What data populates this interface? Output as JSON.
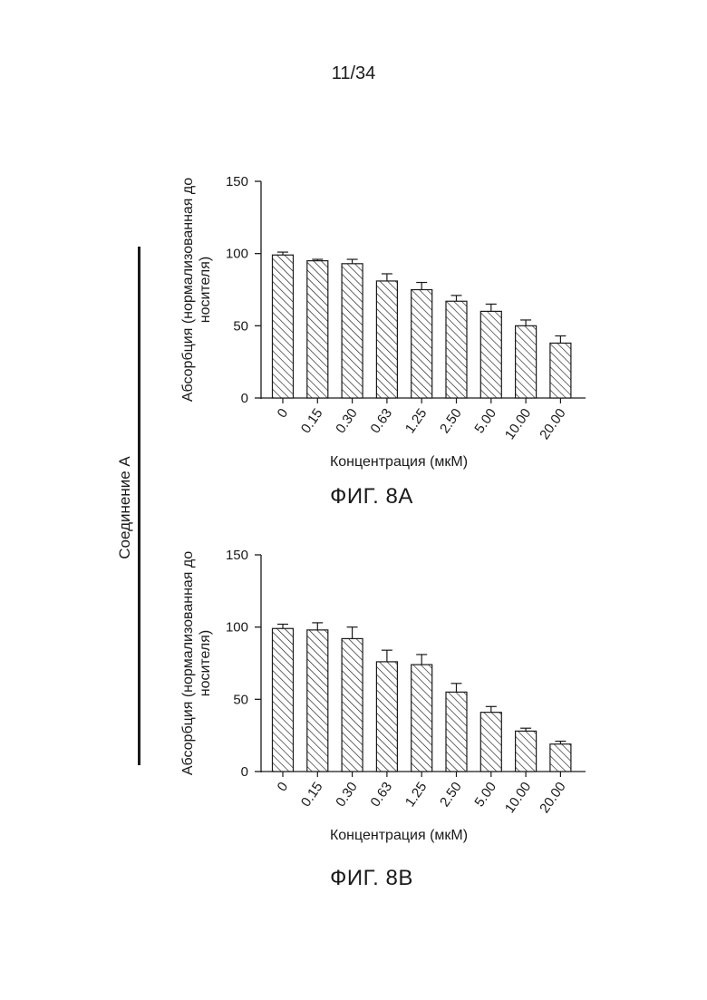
{
  "page": {
    "number": "11/34"
  },
  "side_label": "Соединение А",
  "charts": [
    {
      "caption": "ФИГ. 8А"
    },
    {
      "caption": "ФИГ. 8В"
    }
  ],
  "chart_data": [
    {
      "type": "bar",
      "title": "",
      "xlabel": "Концентрация (мкМ)",
      "ylabel_lines": [
        "Абсорбция (нормализованная до",
        "носителя)"
      ],
      "categories": [
        "0",
        "0.15",
        "0.30",
        "0.63",
        "1.25",
        "2.50",
        "5.00",
        "10.00",
        "20.00"
      ],
      "values": [
        99,
        95,
        93,
        81,
        75,
        67,
        60,
        50,
        38
      ],
      "error_upper": [
        2,
        1,
        3,
        5,
        5,
        4,
        5,
        4,
        5
      ],
      "ylim": [
        0,
        150
      ],
      "yticks": [
        0,
        50,
        100,
        150
      ],
      "grid": false,
      "bar_fill": "diagonal-hatch"
    },
    {
      "type": "bar",
      "title": "",
      "xlabel": "Концентрация (мкМ)",
      "ylabel_lines": [
        "Абсорбция (нормализованная до",
        "носителя)"
      ],
      "categories": [
        "0",
        "0.15",
        "0.30",
        "0.63",
        "1.25",
        "2.50",
        "5.00",
        "10.00",
        "20.00"
      ],
      "values": [
        99,
        98,
        92,
        76,
        74,
        55,
        41,
        28,
        19
      ],
      "error_upper": [
        3,
        5,
        8,
        8,
        7,
        6,
        4,
        2,
        2
      ],
      "ylim": [
        0,
        150
      ],
      "yticks": [
        0,
        50,
        100,
        150
      ],
      "grid": false,
      "bar_fill": "diagonal-hatch"
    }
  ]
}
